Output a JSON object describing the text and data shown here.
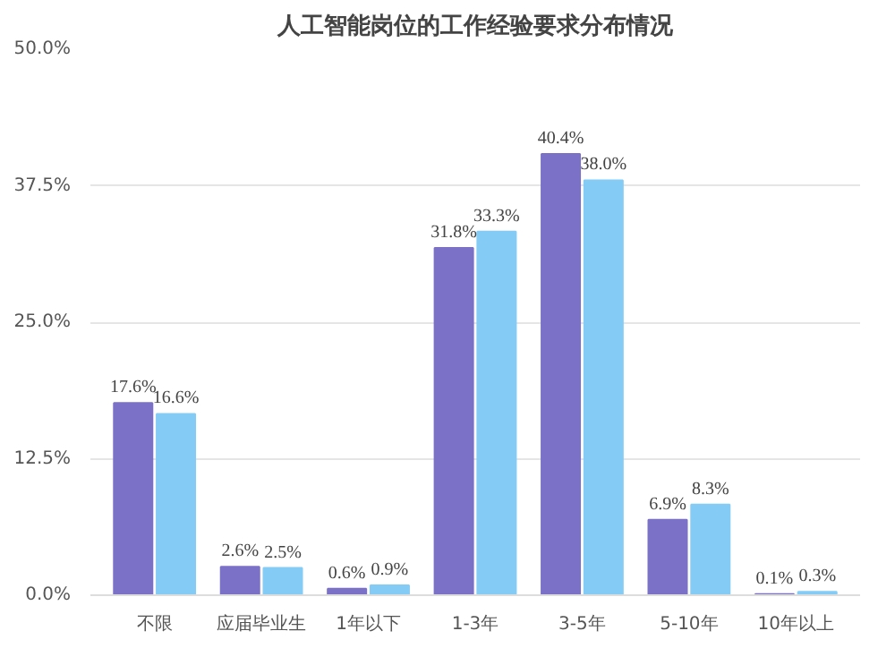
{
  "chart_data": {
    "type": "bar",
    "title": "人工智能岗位的工作经验要求分布情况",
    "categories": [
      "不限",
      "应届毕业生",
      "1年以下",
      "1-3年",
      "3-5年",
      "5-10年",
      "10年以上"
    ],
    "series": [
      {
        "color": "#7b72c8",
        "values": [
          17.6,
          2.6,
          0.6,
          31.8,
          40.4,
          6.9,
          0.1
        ],
        "value_labels": [
          "17.6%",
          "2.6%",
          "0.6%",
          "31.8%",
          "40.4%",
          "6.9%",
          "0.1%"
        ]
      },
      {
        "color": "#84ccf6",
        "values": [
          16.6,
          2.5,
          0.9,
          33.3,
          38.0,
          8.3,
          0.3
        ],
        "value_labels": [
          "16.6%",
          "2.5%",
          "0.9%",
          "33.3%",
          "38.0%",
          "8.3%",
          "0.3%"
        ]
      }
    ],
    "ylim": [
      0,
      50
    ],
    "yticks": [
      {
        "value": 0,
        "label": "0.0%"
      },
      {
        "value": 12.5,
        "label": "12.5%"
      },
      {
        "value": 25,
        "label": "25.0%"
      },
      {
        "value": 37.5,
        "label": "37.5%"
      },
      {
        "value": 50,
        "label": "50.0%"
      }
    ],
    "grid": "y"
  }
}
